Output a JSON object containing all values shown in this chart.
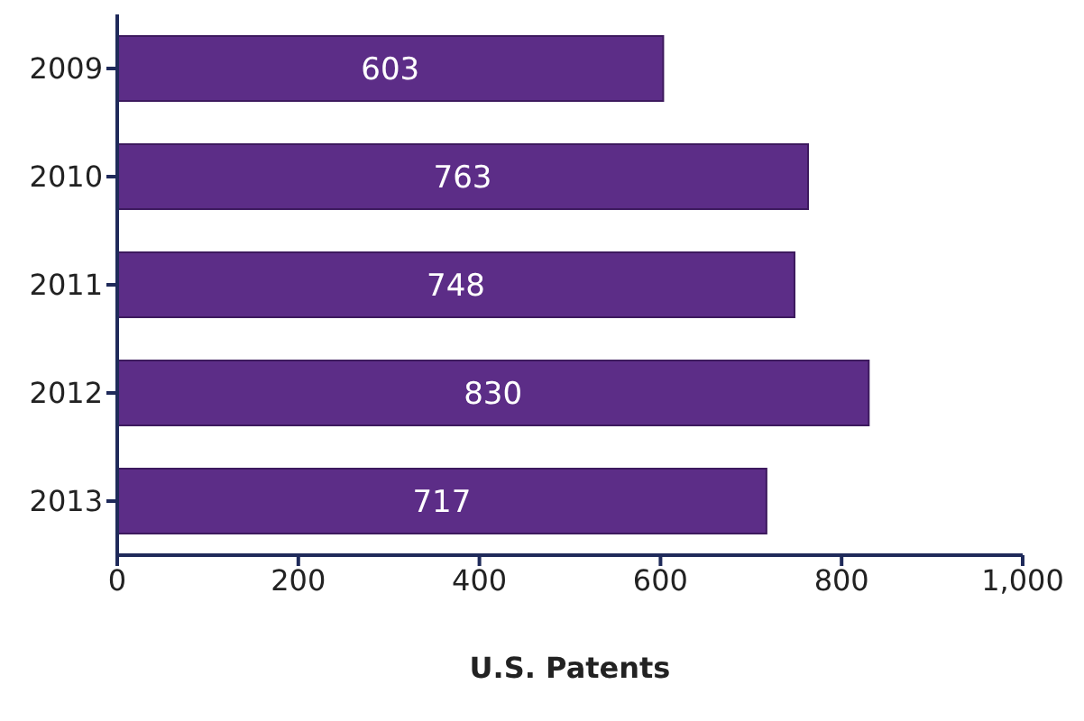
{
  "chart_data": {
    "type": "bar",
    "orientation": "horizontal",
    "categories": [
      "2009",
      "2010",
      "2011",
      "2012",
      "2013"
    ],
    "values": [
      603,
      763,
      748,
      830,
      717
    ],
    "color": "#5c2d87",
    "xlabel": "U.S. Patents",
    "xlim": [
      0,
      1000
    ],
    "xticks": [
      0,
      200,
      400,
      600,
      800,
      {
        "value": 1000,
        "label": "1,000"
      }
    ],
    "data_labels": true,
    "grid": false,
    "legend": false
  }
}
